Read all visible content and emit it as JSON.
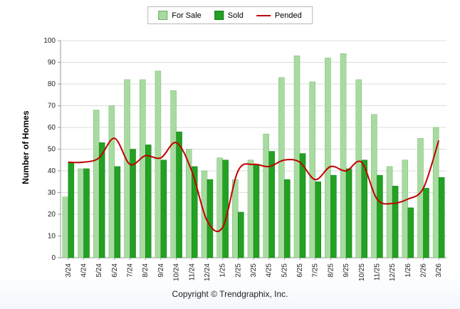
{
  "legend": {
    "for_sale_label": "For Sale",
    "sold_label": "Sold",
    "pended_label": "Pended"
  },
  "y_axis_title": "Number of Homes",
  "footer": {
    "copyright": "Copyright © Trendgraphix, Inc."
  },
  "chart_data": {
    "type": "bar",
    "title": "",
    "xlabel": "",
    "ylabel": "Number of Homes",
    "ylim": [
      0,
      100
    ],
    "ytick_step": 10,
    "grid": true,
    "legend_position": "top",
    "categories": [
      "3/24",
      "4/24",
      "5/24",
      "6/24",
      "7/24",
      "8/24",
      "9/24",
      "10/24",
      "11/24",
      "12/24",
      "1/25",
      "2/25",
      "3/25",
      "4/25",
      "5/25",
      "6/25",
      "7/25",
      "8/25",
      "9/25",
      "10/25",
      "11/25",
      "12/25",
      "1/26",
      "2/26",
      "3/26"
    ],
    "series": [
      {
        "name": "For Sale",
        "kind": "bar",
        "color": "#a8dba0",
        "border_color": "#79b871",
        "values": [
          28,
          41,
          68,
          70,
          82,
          82,
          86,
          77,
          50,
          40,
          46,
          36,
          45,
          57,
          83,
          93,
          81,
          92,
          94,
          82,
          66,
          42,
          45,
          55,
          60
        ]
      },
      {
        "name": "Sold",
        "kind": "bar",
        "color": "#22a122",
        "border_color": "#157a15",
        "values": [
          44,
          41,
          53,
          42,
          50,
          52,
          45,
          58,
          42,
          36,
          45,
          21,
          43,
          49,
          36,
          48,
          35,
          38,
          41,
          45,
          38,
          33,
          23,
          32,
          37
        ]
      },
      {
        "name": "Pended",
        "kind": "line",
        "color": "#c00000",
        "values": [
          44,
          44,
          46,
          55,
          43,
          47,
          46,
          53,
          40,
          17,
          14,
          40,
          43,
          42,
          45,
          44,
          36,
          42,
          40,
          44,
          27,
          25,
          27,
          32,
          54
        ]
      }
    ]
  }
}
